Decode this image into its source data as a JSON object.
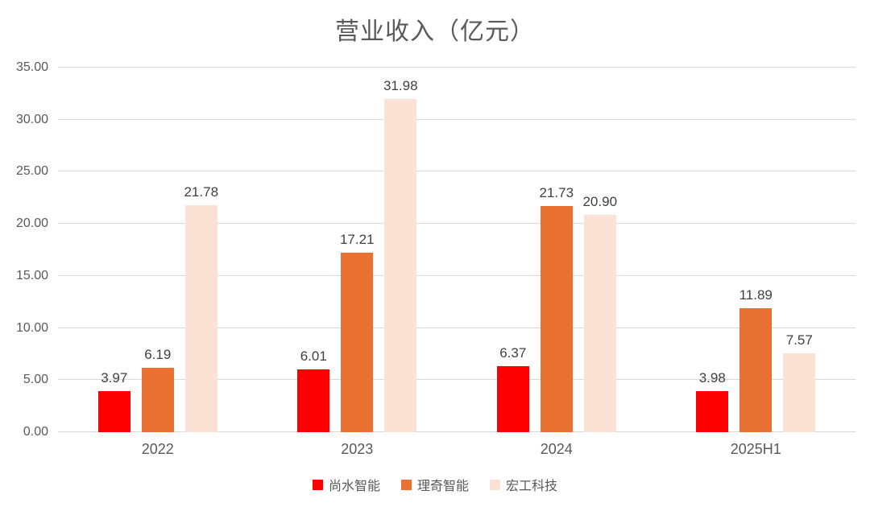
{
  "chart_data": {
    "type": "bar",
    "title": "营业收入（亿元）",
    "categories": [
      "2022",
      "2023",
      "2024",
      "2025H1"
    ],
    "series": [
      {
        "name": "尚水智能",
        "color": "#fe0000",
        "values": [
          3.97,
          6.01,
          6.37,
          3.98
        ]
      },
      {
        "name": "理奇智能",
        "color": "#e97132",
        "values": [
          6.19,
          17.21,
          21.73,
          11.89
        ]
      },
      {
        "name": "宏工科技",
        "color": "#fbe2d5",
        "values": [
          21.78,
          31.98,
          20.9,
          7.57
        ]
      }
    ],
    "xlabel": "",
    "ylabel": "",
    "ylim": [
      0,
      35
    ],
    "ytick_step": 5,
    "yticks": [
      "0.00",
      "5.00",
      "10.00",
      "15.00",
      "20.00",
      "25.00",
      "30.00",
      "35.00"
    ],
    "value_label_decimals": 2,
    "grid": true,
    "gridline_color": "#d9d9d9",
    "legend_position": "bottom"
  }
}
